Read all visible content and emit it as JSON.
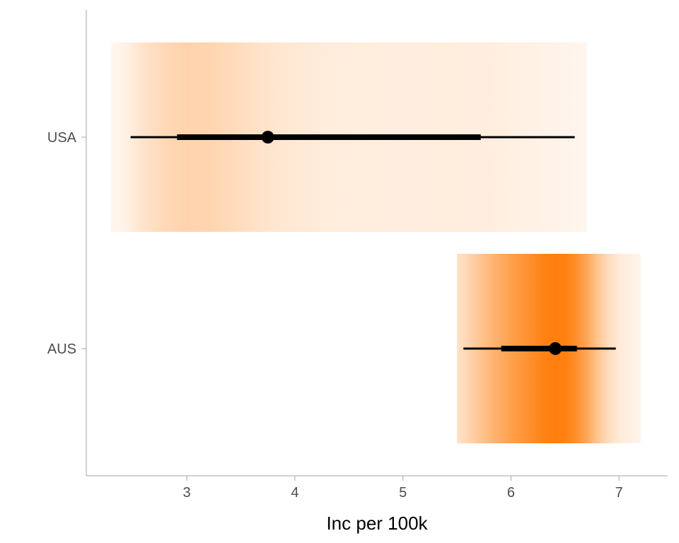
{
  "chart_data": {
    "type": "gradient-interval",
    "title": "",
    "xlabel": "Inc per 100k",
    "ylabel": "",
    "xlim": [
      2.07,
      7.45
    ],
    "x_ticks": [
      3,
      4,
      5,
      6,
      7
    ],
    "categories": [
      "USA",
      "AUS"
    ],
    "grid": false,
    "legend": "none",
    "colors": {
      "density": "#ff7f0e",
      "interval": "#000000",
      "axis": "#b3b3b3"
    },
    "series": [
      {
        "category": "USA",
        "point": 3.75,
        "interval_66": [
          2.91,
          5.72
        ],
        "interval_95": [
          2.48,
          6.59
        ],
        "band": [
          2.3,
          6.7
        ],
        "density": [
          [
            2.3,
            0.06
          ],
          [
            2.45,
            0.12
          ],
          [
            2.6,
            0.22
          ],
          [
            2.8,
            0.3
          ],
          [
            3.0,
            0.34
          ],
          [
            3.2,
            0.33
          ],
          [
            3.4,
            0.29
          ],
          [
            3.6,
            0.24
          ],
          [
            3.8,
            0.2
          ],
          [
            4.0,
            0.17
          ],
          [
            4.3,
            0.15
          ],
          [
            4.6,
            0.14
          ],
          [
            5.0,
            0.13
          ],
          [
            5.4,
            0.14
          ],
          [
            5.8,
            0.13
          ],
          [
            6.2,
            0.11
          ],
          [
            6.7,
            0.07
          ]
        ]
      },
      {
        "category": "AUS",
        "point": 6.41,
        "interval_66": [
          5.91,
          6.61
        ],
        "interval_95": [
          5.56,
          6.97
        ],
        "band": [
          5.5,
          7.2
        ],
        "density": [
          [
            5.5,
            0.22
          ],
          [
            5.6,
            0.32
          ],
          [
            5.7,
            0.44
          ],
          [
            5.85,
            0.6
          ],
          [
            6.0,
            0.74
          ],
          [
            6.15,
            0.85
          ],
          [
            6.3,
            0.97
          ],
          [
            6.4,
            1.0
          ],
          [
            6.5,
            0.99
          ],
          [
            6.6,
            0.88
          ],
          [
            6.7,
            0.7
          ],
          [
            6.8,
            0.46
          ],
          [
            6.9,
            0.28
          ],
          [
            7.0,
            0.16
          ],
          [
            7.2,
            0.08
          ]
        ]
      }
    ]
  }
}
